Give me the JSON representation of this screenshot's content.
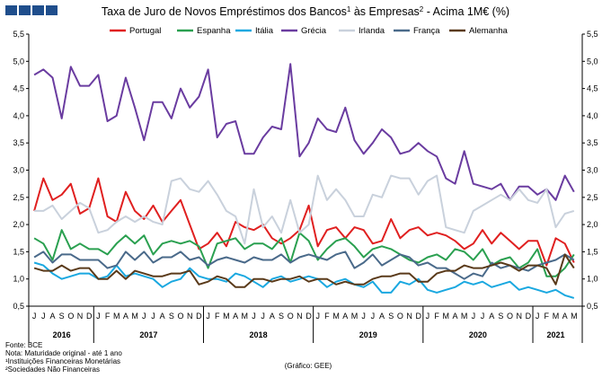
{
  "header": {
    "title_main": "Taxa de Juro de Novos Empréstimos dos Bancos",
    "title_sup1": "1",
    "title_mid": " às Empresas",
    "title_sup2": "2",
    "title_end": " - Acima 1M€ (%)"
  },
  "footnotes": {
    "source": "Fonte: BCE",
    "note": "Nota: Maturidade original - até 1 ano",
    "fn1": "¹Instituições Financeiras Monetárias",
    "fn2": "²Sociedades Não Financeiras",
    "credit": "(Gráfico: GEE)"
  },
  "logo": {
    "colors": [
      "#1f4e8c",
      "#1f4e8c",
      "#1f4e8c",
      "#1f4e8c"
    ]
  },
  "chart_data": {
    "type": "line",
    "title": "Taxa de Juro de Novos Empréstimos dos Bancos¹ às Empresas² - Acima 1M€ (%)",
    "ylim": [
      0.5,
      5.5
    ],
    "yticks": [
      "0,5",
      "1,0",
      "1,5",
      "2,0",
      "2,5",
      "3,0",
      "3,5",
      "4,0",
      "4,5",
      "5,0",
      "5,5"
    ],
    "ytick_values": [
      0.5,
      1.0,
      1.5,
      2.0,
      2.5,
      3.0,
      3.5,
      4.0,
      4.5,
      5.0,
      5.5
    ],
    "grid": false,
    "legend_position": "top",
    "x": [
      "J",
      "J",
      "A",
      "S",
      "O",
      "N",
      "D",
      "J",
      "F",
      "M",
      "A",
      "M",
      "J",
      "J",
      "A",
      "S",
      "O",
      "N",
      "D",
      "J",
      "F",
      "M",
      "A",
      "M",
      "J",
      "J",
      "A",
      "S",
      "O",
      "N",
      "D",
      "J",
      "F",
      "M",
      "A",
      "M",
      "J",
      "J",
      "A",
      "S",
      "O",
      "N",
      "D",
      "J",
      "F",
      "M",
      "A",
      "M",
      "J",
      "J",
      "A",
      "S",
      "O",
      "N",
      "D",
      "J",
      "F",
      "M",
      "A",
      "M"
    ],
    "years": [
      {
        "label": "2016",
        "start": 0,
        "end": 6
      },
      {
        "label": "2017",
        "start": 7,
        "end": 18
      },
      {
        "label": "2018",
        "start": 19,
        "end": 30
      },
      {
        "label": "2019",
        "start": 31,
        "end": 42
      },
      {
        "label": "2020",
        "start": 43,
        "end": 54
      },
      {
        "label": "2021",
        "start": 55,
        "end": 59
      }
    ],
    "series": [
      {
        "name": "Portugal",
        "color": "#e02020",
        "values": [
          2.25,
          2.85,
          2.45,
          2.55,
          2.75,
          2.2,
          2.3,
          2.85,
          2.15,
          2.05,
          2.6,
          2.25,
          2.1,
          2.35,
          2.05,
          2.25,
          2.45,
          2.0,
          1.55,
          1.65,
          1.85,
          1.6,
          2.05,
          1.95,
          1.9,
          2.0,
          1.75,
          1.65,
          1.75,
          1.9,
          2.35,
          1.6,
          1.9,
          1.95,
          1.75,
          1.95,
          1.9,
          1.65,
          1.7,
          2.1,
          1.75,
          1.9,
          1.95,
          1.8,
          1.85,
          1.8,
          1.7,
          1.55,
          1.65,
          1.9,
          1.65,
          1.85,
          1.7,
          1.55,
          1.7,
          1.7,
          1.25,
          1.75,
          1.65,
          1.3
        ]
      },
      {
        "name": "Espanha",
        "color": "#2aa050",
        "values": [
          1.75,
          1.65,
          1.35,
          1.9,
          1.55,
          1.65,
          1.55,
          1.55,
          1.45,
          1.65,
          1.8,
          1.65,
          1.8,
          1.45,
          1.65,
          1.7,
          1.65,
          1.7,
          1.6,
          1.2,
          1.65,
          1.7,
          1.75,
          1.55,
          1.65,
          1.65,
          1.55,
          1.75,
          1.3,
          1.85,
          1.7,
          1.35,
          1.55,
          1.7,
          1.75,
          1.6,
          1.4,
          1.55,
          1.6,
          1.55,
          1.45,
          1.35,
          1.3,
          1.4,
          1.45,
          1.35,
          1.55,
          1.5,
          1.35,
          1.55,
          1.25,
          1.35,
          1.4,
          1.2,
          1.3,
          1.55,
          1.05,
          1.05,
          1.2,
          1.45
        ]
      },
      {
        "name": "Itália",
        "color": "#1aa8e0",
        "values": [
          1.3,
          1.25,
          1.1,
          1.0,
          1.05,
          1.1,
          1.1,
          1.0,
          1.05,
          1.25,
          1.05,
          1.1,
          1.05,
          1.0,
          0.85,
          0.95,
          1.0,
          1.2,
          1.05,
          1.0,
          1.0,
          0.95,
          1.1,
          1.05,
          0.95,
          0.85,
          1.0,
          1.05,
          0.95,
          1.0,
          1.05,
          1.0,
          0.85,
          0.95,
          1.0,
          0.9,
          0.85,
          0.95,
          0.75,
          0.75,
          0.95,
          0.9,
          1.0,
          0.8,
          0.75,
          0.8,
          0.85,
          0.95,
          0.9,
          0.95,
          0.85,
          0.9,
          0.95,
          0.8,
          0.85,
          0.8,
          0.75,
          0.8,
          0.7,
          0.65
        ]
      },
      {
        "name": "Grécia",
        "color": "#6a3ca0",
        "values": [
          4.75,
          4.85,
          4.7,
          3.95,
          4.9,
          4.55,
          4.55,
          4.75,
          3.9,
          4.0,
          4.7,
          4.15,
          3.55,
          4.25,
          4.25,
          3.95,
          4.5,
          4.15,
          4.35,
          4.85,
          3.6,
          3.85,
          3.9,
          3.3,
          3.3,
          3.6,
          3.8,
          3.75,
          4.95,
          3.25,
          3.5,
          3.95,
          3.75,
          3.7,
          4.15,
          3.55,
          3.3,
          3.5,
          3.75,
          3.6,
          3.3,
          3.35,
          3.5,
          3.35,
          3.25,
          2.85,
          2.75,
          3.35,
          2.75,
          2.7,
          2.65,
          2.75,
          2.45,
          2.7,
          2.7,
          2.55,
          2.65,
          2.45,
          2.9,
          2.6
        ]
      },
      {
        "name": "Irlanda",
        "color": "#c9d1dc",
        "values": [
          2.25,
          2.25,
          2.35,
          2.1,
          2.25,
          2.4,
          2.3,
          1.85,
          1.9,
          2.05,
          2.15,
          2.05,
          2.15,
          2.05,
          2.0,
          2.8,
          2.85,
          2.65,
          2.6,
          2.8,
          2.55,
          2.25,
          2.15,
          1.65,
          2.65,
          1.95,
          2.15,
          1.85,
          2.45,
          1.85,
          2.0,
          2.9,
          2.45,
          2.65,
          2.45,
          2.15,
          2.15,
          2.55,
          2.5,
          2.9,
          2.85,
          2.85,
          2.55,
          2.8,
          2.9,
          1.95,
          1.9,
          1.85,
          2.25,
          2.35,
          2.45,
          2.55,
          2.45,
          2.65,
          2.45,
          2.4,
          2.65,
          1.95,
          2.2,
          2.25
        ]
      },
      {
        "name": "França",
        "color": "#4a6a8a",
        "values": [
          1.4,
          1.5,
          1.3,
          1.45,
          1.45,
          1.35,
          1.35,
          1.35,
          1.2,
          1.25,
          1.5,
          1.35,
          1.5,
          1.3,
          1.4,
          1.4,
          1.5,
          1.35,
          1.4,
          1.25,
          1.35,
          1.4,
          1.35,
          1.3,
          1.4,
          1.35,
          1.35,
          1.45,
          1.3,
          1.4,
          1.45,
          1.4,
          1.35,
          1.45,
          1.5,
          1.2,
          1.3,
          1.45,
          1.25,
          1.35,
          1.45,
          1.4,
          1.25,
          1.3,
          1.2,
          1.2,
          1.1,
          1.0,
          1.1,
          1.05,
          1.3,
          1.2,
          1.25,
          1.2,
          1.15,
          1.25,
          1.3,
          1.35,
          1.45,
          1.35
        ]
      },
      {
        "name": "Alemanha",
        "color": "#5a3a1a",
        "values": [
          1.2,
          1.15,
          1.15,
          1.25,
          1.15,
          1.2,
          1.2,
          1.0,
          1.0,
          1.15,
          1.0,
          1.15,
          1.1,
          1.05,
          1.05,
          1.1,
          1.1,
          1.15,
          0.9,
          0.95,
          1.05,
          1.0,
          0.85,
          0.85,
          1.0,
          1.0,
          0.95,
          1.0,
          1.0,
          1.05,
          0.95,
          1.0,
          1.0,
          0.9,
          0.95,
          0.9,
          0.9,
          1.0,
          1.05,
          1.05,
          1.1,
          1.1,
          0.95,
          0.95,
          1.1,
          1.15,
          1.15,
          1.25,
          1.2,
          1.2,
          1.25,
          1.3,
          1.25,
          1.15,
          1.25,
          1.25,
          1.2,
          0.9,
          1.45,
          1.2
        ]
      }
    ]
  }
}
